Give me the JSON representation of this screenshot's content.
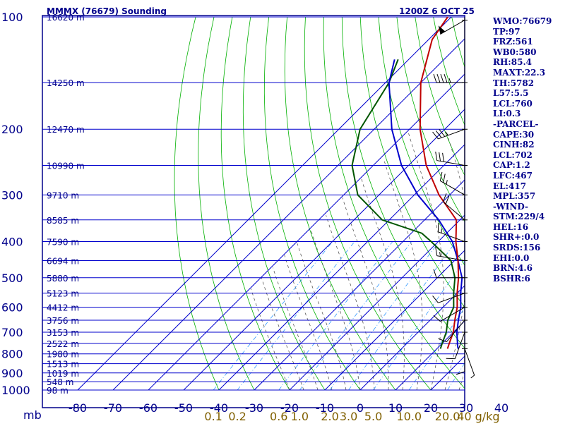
{
  "header": {
    "station": "MMMX (76679) Sounding",
    "datetime": "1200Z  6 OCT 25"
  },
  "stats": [
    "WMO:76679",
    "TP:97",
    "FRZ:561",
    "WB0:580",
    "RH:85.4",
    "MAXT:22.3",
    "TH:5782",
    "L57:5.5",
    "LCL:760",
    "LI:0.3",
    "-PARCEL-",
    "CAPE:30",
    "CINH:82",
    "LCL:702",
    "CAP:1.2",
    "LFC:467",
    "EL:417",
    "MPL:357",
    "-WIND-",
    "STM:229/4",
    "HEL:16",
    "SHR+:0.0",
    "SRDS:156",
    "EHI:0.0",
    "BRN:4.6",
    "BSHR:6"
  ],
  "colors": {
    "frame": "#00008b",
    "grid": "#0000cd",
    "dry_adiabat": "#00b000",
    "moist_adiabat": "#444444",
    "mixing_ratio": "#3399ff",
    "temperature": "#c00000",
    "dewpoint": "#005500",
    "parcel": "#0000cc",
    "mixing_label": "#806000"
  },
  "chart_data": {
    "type": "skew-t",
    "pressure_axis": {
      "scale": "log",
      "ticks": [
        100,
        200,
        300,
        400,
        500,
        600,
        700,
        800,
        900,
        1000
      ],
      "range": [
        100,
        1000
      ]
    },
    "temperature_axis": {
      "unit_label": "mb",
      "ticks": [
        -80,
        -70,
        -60,
        -50,
        -40,
        -30,
        -20,
        -10,
        0,
        10,
        20,
        30,
        40
      ],
      "tick_labels": [
        "-80",
        "-70",
        "-60",
        "-50",
        "-40",
        "-30",
        "-20",
        "-10",
        "0",
        "10",
        "20",
        "30",
        "40"
      ]
    },
    "mixing_ratio_labels": [
      "0.1",
      "0.2",
      "0.6",
      "1.0",
      "2.0",
      "3.0",
      "5.0",
      "10.0",
      "20.0",
      "40 g/kg"
    ],
    "mixing_ratios": [
      0.1,
      0.2,
      0.6,
      1.0,
      2.0,
      3.0,
      5.0,
      10.0,
      20.0,
      40.0
    ],
    "heights": [
      {
        "p": 100,
        "label": "16620 m"
      },
      {
        "p": 150,
        "label": "14250 m"
      },
      {
        "p": 200,
        "label": "12470 m"
      },
      {
        "p": 250,
        "label": "10990 m"
      },
      {
        "p": 300,
        "label": "9710 m"
      },
      {
        "p": 350,
        "label": "8585 m"
      },
      {
        "p": 400,
        "label": "7590 m"
      },
      {
        "p": 450,
        "label": "6694 m"
      },
      {
        "p": 500,
        "label": "5880 m"
      },
      {
        "p": 550,
        "label": "5123 m"
      },
      {
        "p": 600,
        "label": "4412 m"
      },
      {
        "p": 650,
        "label": "3756 m"
      },
      {
        "p": 700,
        "label": "3153 m"
      },
      {
        "p": 750,
        "label": "2522 m"
      },
      {
        "p": 800,
        "label": "1980 m"
      },
      {
        "p": 850,
        "label": "1513 m"
      },
      {
        "p": 900,
        "label": "1019 m"
      },
      {
        "p": 950,
        "label": "548 m"
      },
      {
        "p": 1000,
        "label": "98 m"
      }
    ],
    "temperature": [
      {
        "p": 100,
        "t": -81
      },
      {
        "p": 115,
        "t": -79
      },
      {
        "p": 150,
        "t": -70
      },
      {
        "p": 200,
        "t": -57
      },
      {
        "p": 250,
        "t": -45
      },
      {
        "p": 300,
        "t": -33
      },
      {
        "p": 350,
        "t": -21
      },
      {
        "p": 400,
        "t": -15
      },
      {
        "p": 450,
        "t": -9
      },
      {
        "p": 500,
        "t": -4
      },
      {
        "p": 550,
        "t": 0
      },
      {
        "p": 600,
        "t": 4
      },
      {
        "p": 650,
        "t": 7
      },
      {
        "p": 700,
        "t": 10
      },
      {
        "p": 750,
        "t": 12
      },
      {
        "p": 775,
        "t": 13
      }
    ],
    "dewpoint": [
      {
        "p": 130,
        "t": -83
      },
      {
        "p": 150,
        "t": -79
      },
      {
        "p": 200,
        "t": -74
      },
      {
        "p": 250,
        "t": -66
      },
      {
        "p": 300,
        "t": -56
      },
      {
        "p": 350,
        "t": -42
      },
      {
        "p": 380,
        "t": -27
      },
      {
        "p": 400,
        "t": -22
      },
      {
        "p": 450,
        "t": -11
      },
      {
        "p": 500,
        "t": -5
      },
      {
        "p": 550,
        "t": -1
      },
      {
        "p": 600,
        "t": 3
      },
      {
        "p": 650,
        "t": 5
      },
      {
        "p": 700,
        "t": 8
      },
      {
        "p": 750,
        "t": 10
      },
      {
        "p": 775,
        "t": 11
      }
    ],
    "parcel": [
      {
        "p": 130,
        "t": -84
      },
      {
        "p": 150,
        "t": -79
      },
      {
        "p": 200,
        "t": -65
      },
      {
        "p": 250,
        "t": -52
      },
      {
        "p": 300,
        "t": -39
      },
      {
        "p": 350,
        "t": -26
      },
      {
        "p": 400,
        "t": -16
      },
      {
        "p": 450,
        "t": -9
      },
      {
        "p": 500,
        "t": -3
      },
      {
        "p": 550,
        "t": 1
      },
      {
        "p": 600,
        "t": 5
      },
      {
        "p": 650,
        "t": 8
      },
      {
        "p": 700,
        "t": 11
      },
      {
        "p": 760,
        "t": 15
      },
      {
        "p": 775,
        "t": 16
      }
    ],
    "winds": [
      {
        "p": 102,
        "dir": 240,
        "spd": 50
      },
      {
        "p": 150,
        "dir": 270,
        "spd": 45
      },
      {
        "p": 200,
        "dir": 250,
        "spd": 35
      },
      {
        "p": 250,
        "dir": 280,
        "spd": 30
      },
      {
        "p": 300,
        "dir": 300,
        "spd": 25
      },
      {
        "p": 350,
        "dir": 310,
        "spd": 20
      },
      {
        "p": 400,
        "dir": 290,
        "spd": 15
      },
      {
        "p": 450,
        "dir": 280,
        "spd": 15
      },
      {
        "p": 500,
        "dir": 270,
        "spd": 10
      },
      {
        "p": 550,
        "dir": 250,
        "spd": 10
      },
      {
        "p": 600,
        "dir": 240,
        "spd": 10
      },
      {
        "p": 650,
        "dir": 220,
        "spd": 10
      },
      {
        "p": 700,
        "dir": 200,
        "spd": 10
      },
      {
        "p": 750,
        "dir": 180,
        "spd": 10
      },
      {
        "p": 775,
        "dir": 160,
        "spd": 5
      }
    ]
  }
}
